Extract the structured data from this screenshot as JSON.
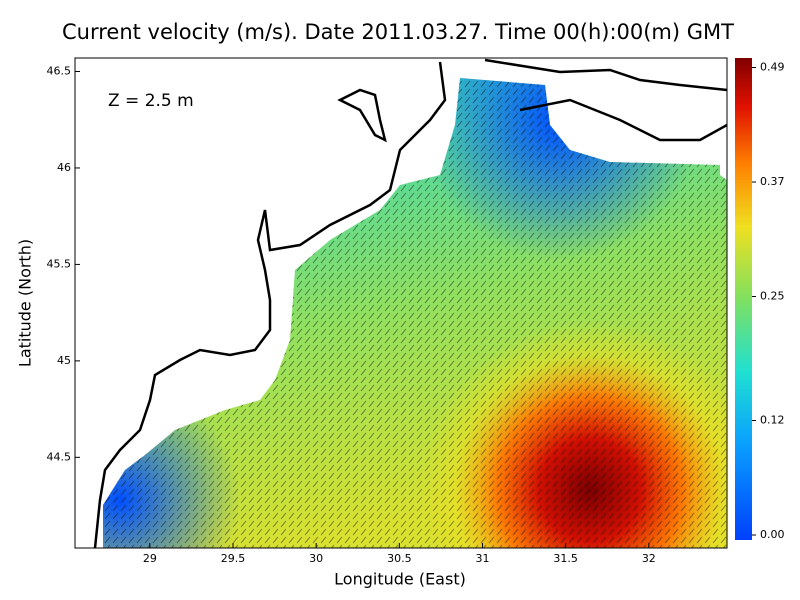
{
  "chart_data": {
    "type": "map",
    "title": "Current velocity (m/s). Date 2011.03.27. Time 00(h):00(m) GMT",
    "annotation": "Z = 2.5 m",
    "x_label": "Longitude (East)",
    "y_label": "Latitude (North)",
    "xlim": [
      28.55,
      32.47
    ],
    "ylim": [
      44.03,
      46.57
    ],
    "xticks": [
      29,
      29.5,
      30,
      30.5,
      31,
      31.5,
      32
    ],
    "yticks": [
      44.5,
      45,
      45.5,
      46,
      46.5
    ],
    "clim": [
      0,
      0.5
    ],
    "cticks": [
      {
        "value": 0,
        "label": "0.00"
      },
      0.12,
      0.25,
      0.37,
      0.49
    ]
  }
}
